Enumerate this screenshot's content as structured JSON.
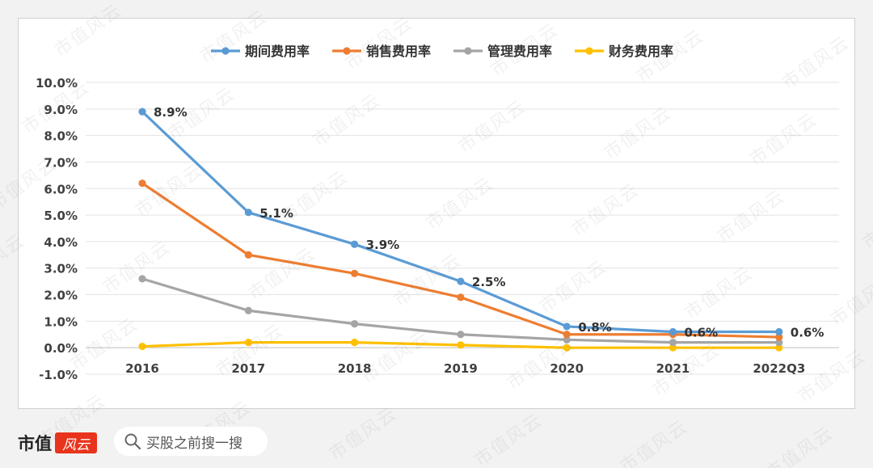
{
  "chart_data": {
    "type": "line",
    "categories": [
      "2016",
      "2017",
      "2018",
      "2019",
      "2020",
      "2021",
      "2022Q3"
    ],
    "ylim": [
      -1.0,
      10.0
    ],
    "yticks": [
      "10.0%",
      "9.0%",
      "8.0%",
      "7.0%",
      "6.0%",
      "5.0%",
      "4.0%",
      "3.0%",
      "2.0%",
      "1.0%",
      "0.0%",
      "-1.0%"
    ],
    "ytick_values": [
      10,
      9,
      8,
      7,
      6,
      5,
      4,
      3,
      2,
      1,
      0,
      -1
    ],
    "grid": true,
    "legend_position": "top",
    "series": [
      {
        "name": "期间费用率",
        "color": "#5b9bd5",
        "values": [
          8.9,
          5.1,
          3.9,
          2.5,
          0.8,
          0.6,
          0.6
        ],
        "labels": [
          "8.9%",
          "5.1%",
          "3.9%",
          "2.5%",
          "0.8%",
          "0.6%",
          "0.6%"
        ]
      },
      {
        "name": "销售费用率",
        "color": "#ed7d31",
        "values": [
          6.2,
          3.5,
          2.8,
          1.9,
          0.5,
          0.5,
          0.4
        ]
      },
      {
        "name": "管理费用率",
        "color": "#a5a5a5",
        "values": [
          2.6,
          1.4,
          0.9,
          0.5,
          0.3,
          0.2,
          0.2
        ]
      },
      {
        "name": "财务费用率",
        "color": "#ffc000",
        "values": [
          0.05,
          0.2,
          0.2,
          0.1,
          0.0,
          0.0,
          0.0
        ]
      }
    ]
  },
  "watermark": "市值风云",
  "footer": {
    "brand": "市值",
    "brand_logo": "风云",
    "search_icon": "search-icon",
    "search_text": "买股之前搜一搜"
  }
}
